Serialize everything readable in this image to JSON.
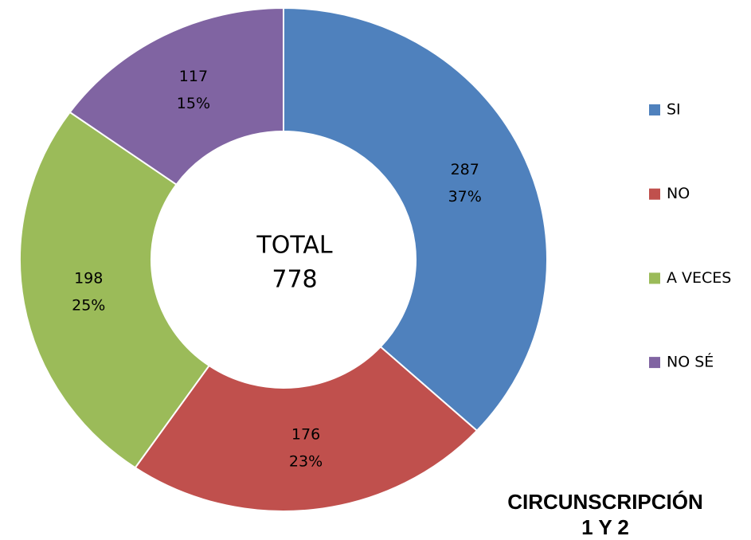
{
  "chart_data": {
    "type": "donut",
    "title": [
      "CIRCUNSCRIPCIÓN",
      "1 Y 2"
    ],
    "categories": [
      "SI",
      "NO",
      "A VECES",
      "NO SÉ"
    ],
    "values": [
      287,
      176,
      198,
      117
    ],
    "percent_labels": [
      "37%",
      "23%",
      "25%",
      "15%"
    ],
    "colors": [
      "#4f81bd",
      "#c0504d",
      "#9bbb59",
      "#8064a2"
    ],
    "center_label": "TOTAL",
    "total": 778,
    "legend": "right"
  }
}
